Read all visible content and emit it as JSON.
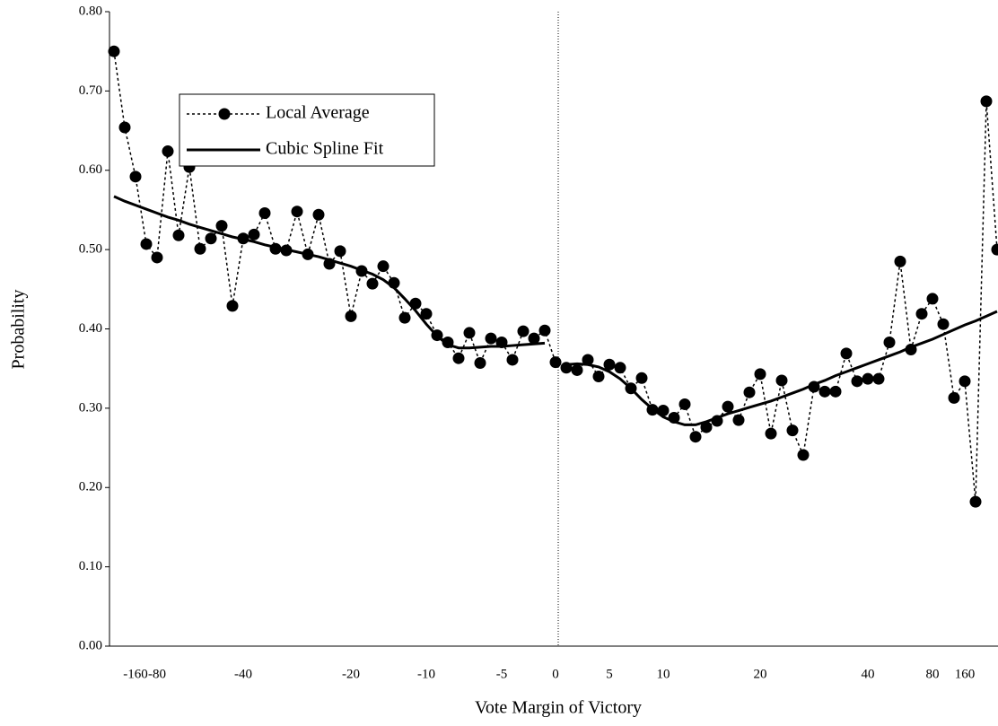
{
  "chart_data": {
    "type": "line",
    "x_label": "Vote Margin of Victory",
    "y_label": "Probability",
    "categories": [
      null,
      null,
      "-160",
      null,
      "-80",
      null,
      null,
      null,
      null,
      null,
      null,
      null,
      "-40",
      null,
      null,
      null,
      null,
      null,
      null,
      null,
      null,
      null,
      "-20",
      null,
      null,
      null,
      null,
      null,
      null,
      "-10",
      null,
      null,
      null,
      null,
      null,
      null,
      "-5",
      null,
      null,
      null,
      null,
      "0",
      null,
      null,
      null,
      null,
      "5",
      null,
      null,
      null,
      null,
      "10",
      null,
      null,
      null,
      null,
      null,
      null,
      null,
      null,
      "20",
      null,
      null,
      null,
      null,
      null,
      null,
      null,
      null,
      null,
      "40",
      null,
      null,
      null,
      null,
      null,
      "80",
      null,
      null,
      "160",
      null,
      null,
      null
    ],
    "series": [
      {
        "name": "Local Average",
        "color": "#000000",
        "line_style": "dotted",
        "marker": "circle",
        "values": [
          0.75,
          0.654,
          0.592,
          0.507,
          0.49,
          0.624,
          0.518,
          0.604,
          0.501,
          0.514,
          0.53,
          0.429,
          0.514,
          0.519,
          0.546,
          0.501,
          0.499,
          0.548,
          0.494,
          0.544,
          0.482,
          0.498,
          0.416,
          0.473,
          0.457,
          0.479,
          0.458,
          0.414,
          0.432,
          0.419,
          0.392,
          0.383,
          0.363,
          0.395,
          0.357,
          0.388,
          0.383,
          0.361,
          0.397,
          0.388,
          0.398,
          0.358,
          0.351,
          0.348,
          0.361,
          0.34,
          0.355,
          0.351,
          0.325,
          0.338,
          0.298,
          0.297,
          0.288,
          0.305,
          0.264,
          0.276,
          0.284,
          0.302,
          0.285,
          0.32,
          0.343,
          0.268,
          0.335,
          0.272,
          0.241,
          0.327,
          0.321,
          0.321,
          0.369,
          0.334,
          0.337,
          0.337,
          0.383,
          0.485,
          0.374,
          0.419,
          0.438,
          0.406,
          0.313,
          0.334,
          0.182,
          0.687,
          0.5
        ]
      },
      {
        "name": "Cubic Spline Fit",
        "color": "#000000",
        "line_style": "solid",
        "marker": "none",
        "values": [
          0.567,
          0.561,
          0.556,
          0.551,
          0.546,
          0.541,
          0.537,
          0.532,
          0.528,
          0.524,
          0.52,
          0.516,
          0.513,
          0.51,
          0.506,
          0.503,
          0.5,
          0.497,
          0.494,
          0.491,
          0.487,
          0.483,
          0.479,
          0.474,
          0.469,
          0.462,
          0.452,
          0.438,
          0.423,
          0.406,
          0.391,
          0.38,
          0.376,
          0.376,
          0.377,
          0.378,
          0.378,
          0.379,
          0.38,
          0.381,
          0.382,
          null,
          0.355,
          0.356,
          0.355,
          0.352,
          0.346,
          0.337,
          0.325,
          0.311,
          0.299,
          0.289,
          0.283,
          0.279,
          0.279,
          0.283,
          0.288,
          0.293,
          0.297,
          0.301,
          0.305,
          0.309,
          0.314,
          0.319,
          0.324,
          0.33,
          0.335,
          0.341,
          0.346,
          0.351,
          0.356,
          0.361,
          0.366,
          0.371,
          0.377,
          0.382,
          0.387,
          0.393,
          0.399,
          0.405,
          0.41,
          0.416,
          0.422
        ]
      }
    ],
    "ylim": [
      0,
      0.8
    ],
    "yticks": [
      {
        "value": 0,
        "label": "0.00"
      },
      {
        "value": 0.1,
        "label": "0.10"
      },
      {
        "value": 0.2,
        "label": "0.20"
      },
      {
        "value": 0.3,
        "label": "0.30"
      },
      {
        "value": 0.4,
        "label": "0.40"
      },
      {
        "value": 0.5,
        "label": "0.50"
      },
      {
        "value": 0.6,
        "label": "0.60"
      },
      {
        "value": 0.7,
        "label": "0.70"
      },
      {
        "value": 0.8,
        "label": "0.80"
      }
    ],
    "grid": false,
    "legend": "top-left"
  }
}
